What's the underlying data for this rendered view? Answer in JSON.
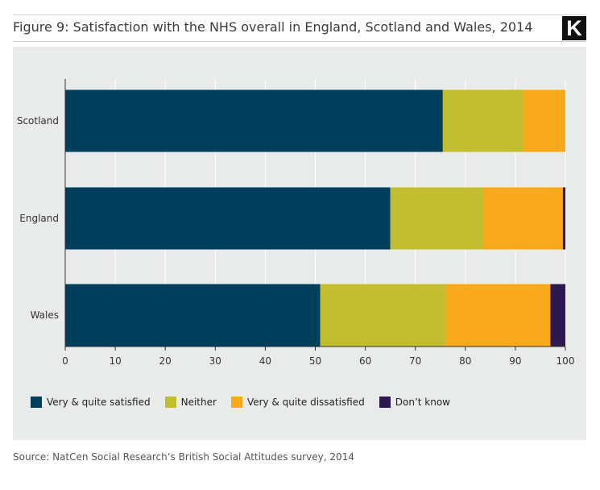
{
  "header": {
    "title": "Figure 9: Satisfaction with the NHS overall in England, Scotland and Wales, 2014",
    "logo_letter": "K"
  },
  "footer": {
    "source": "Source: NatCen Social Research’s British Social Attitudes survey, 2014"
  },
  "chart_data": {
    "type": "bar",
    "orientation": "horizontal",
    "stacked": true,
    "title": "Figure 9: Satisfaction with the NHS overall in England, Scotland and Wales, 2014",
    "xlabel": "",
    "ylabel": "",
    "xlim": [
      0,
      100
    ],
    "xticks": [
      0,
      10,
      20,
      30,
      40,
      50,
      60,
      70,
      80,
      90,
      100
    ],
    "grid": true,
    "legend_position": "bottom-left",
    "categories": [
      "Scotland",
      "England",
      "Wales"
    ],
    "series": [
      {
        "name": "Very & quite satisfied",
        "color": "#003f5c",
        "values": [
          75.5,
          65,
          51
        ]
      },
      {
        "name": "Neither",
        "color": "#c1bd2f",
        "values": [
          16,
          18.5,
          25
        ]
      },
      {
        "name": "Very & quite dissatisfied",
        "color": "#f7a81b",
        "values": [
          8.5,
          16,
          21
        ]
      },
      {
        "name": "Don’t know",
        "color": "#2d1850",
        "values": [
          0,
          0.5,
          3
        ]
      }
    ]
  }
}
